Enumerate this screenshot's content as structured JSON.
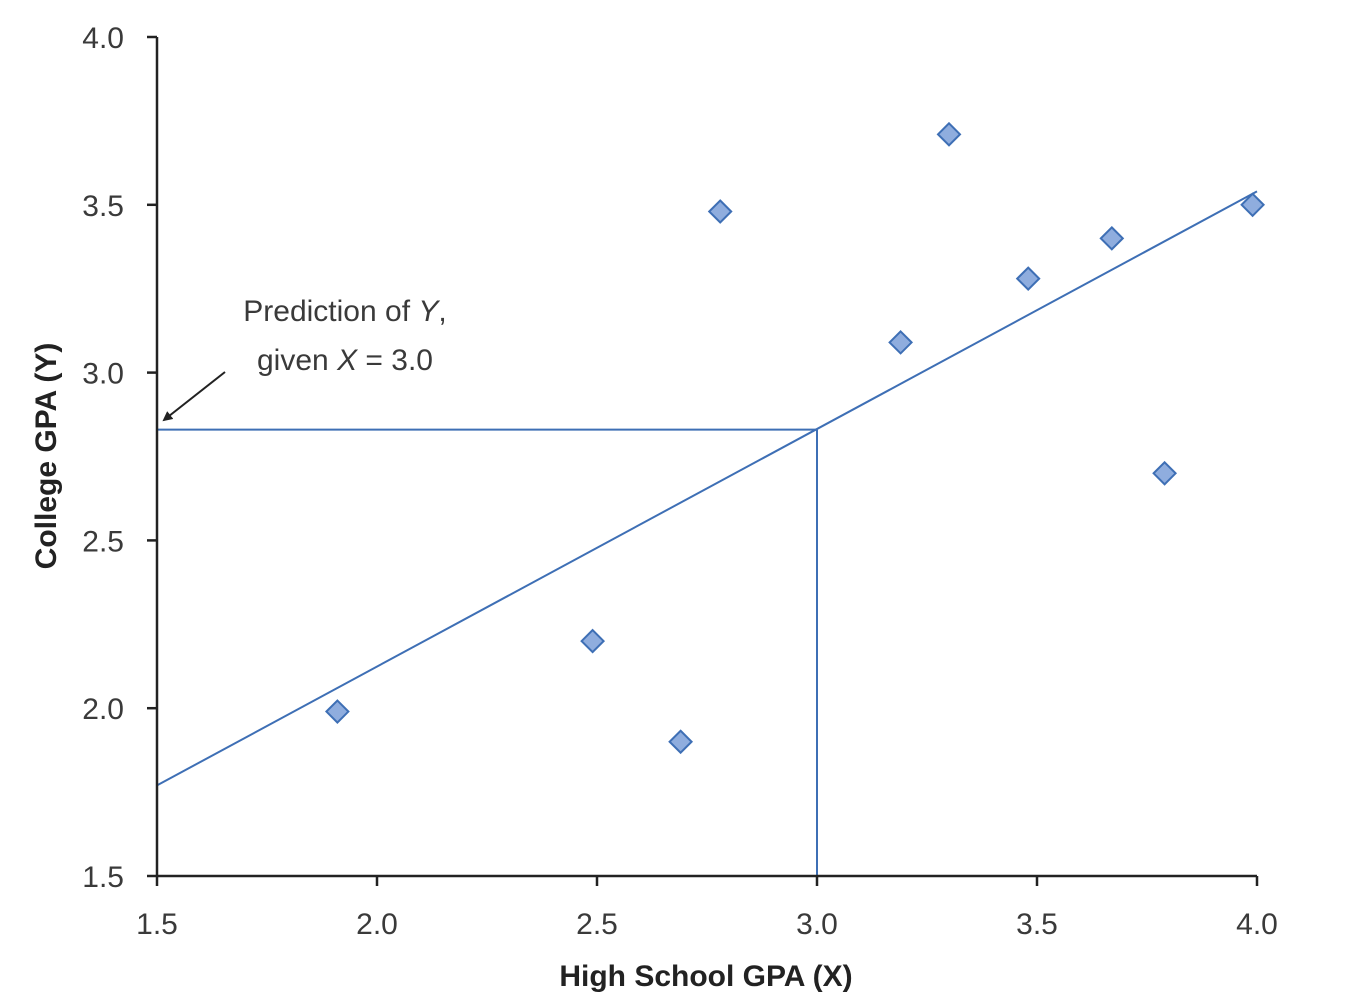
{
  "chart_data": {
    "type": "scatter",
    "title": "",
    "xlabel": "High School GPA (X)",
    "ylabel": "College GPA (Y)",
    "xlim": [
      1.5,
      4.0
    ],
    "ylim": [
      1.5,
      4.0
    ],
    "xticks": [
      "1.5",
      "2.0",
      "2.5",
      "3.0",
      "3.5",
      "4.0"
    ],
    "yticks": [
      "1.5",
      "2.0",
      "2.5",
      "3.0",
      "3.5",
      "4.0"
    ],
    "grid": false,
    "points": [
      {
        "x": 1.91,
        "y": 1.99
      },
      {
        "x": 2.49,
        "y": 2.2
      },
      {
        "x": 2.69,
        "y": 1.9
      },
      {
        "x": 2.78,
        "y": 3.48
      },
      {
        "x": 3.19,
        "y": 3.09
      },
      {
        "x": 3.3,
        "y": 3.71
      },
      {
        "x": 3.48,
        "y": 3.28
      },
      {
        "x": 3.67,
        "y": 3.4
      },
      {
        "x": 3.79,
        "y": 2.7
      },
      {
        "x": 3.99,
        "y": 3.5
      }
    ],
    "regression_line": {
      "x1": 1.5,
      "y1": 1.77,
      "x2": 4.0,
      "y2": 3.54
    },
    "prediction": {
      "x": 3.0,
      "y": 2.83
    },
    "annotation": {
      "line1_text": "Prediction of ",
      "line1_var": "Y",
      "line1_end": ",",
      "line2_text": "given ",
      "line2_var": "X",
      "line2_end": " = 3.0"
    },
    "colors": {
      "line": "#3e6fb5",
      "marker_fill": "#8fadde",
      "marker_stroke": "#3e6fb5",
      "axis": "#222222"
    }
  }
}
